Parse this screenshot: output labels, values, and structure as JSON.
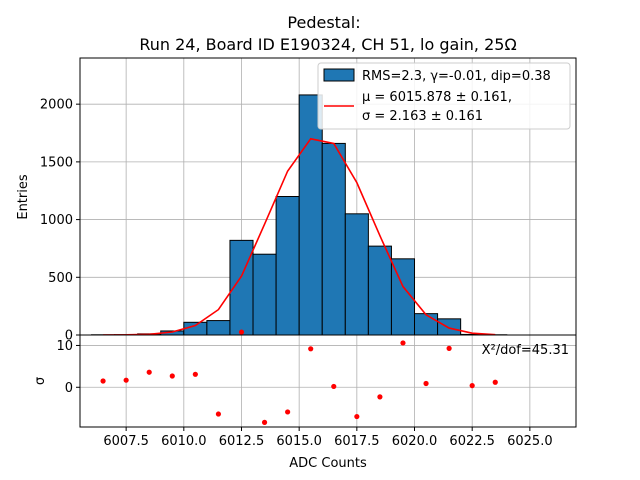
{
  "chart_data": [
    {
      "type": "bar",
      "title_line1": "Pedestal:",
      "title_line2": "Run 24, Board ID E190324, CH 51, lo gain, 25Ω",
      "xlabel": "",
      "ylabel": "Entries",
      "xlim": [
        6005.5,
        6027.0
      ],
      "ylim": [
        0,
        2400
      ],
      "grid": true,
      "yticks": [
        0,
        500,
        1000,
        1500,
        2000
      ],
      "bins": {
        "left_edges": [
          6006,
          6007,
          6008,
          6009,
          6010,
          6011,
          6012,
          6013,
          6014,
          6015,
          6016,
          6017,
          6018,
          6019,
          6020,
          6021,
          6022,
          6023
        ],
        "width": 1,
        "counts": [
          2,
          3,
          10,
          35,
          110,
          125,
          820,
          700,
          1200,
          2080,
          1660,
          1050,
          770,
          660,
          185,
          140,
          5,
          2
        ]
      },
      "fit_curve": {
        "x": [
          6006.5,
          6007.5,
          6008.5,
          6009.5,
          6010.5,
          6011.5,
          6012.5,
          6013.5,
          6014.5,
          6015.5,
          6016.5,
          6017.5,
          6018.5,
          6019.5,
          6020.5,
          6021.5,
          6022.5,
          6023.5
        ],
        "y": [
          0,
          1,
          6,
          26,
          82,
          220,
          510,
          960,
          1420,
          1700,
          1660,
          1320,
          860,
          420,
          175,
          60,
          16,
          3
        ]
      },
      "legend": {
        "position": "upper-right",
        "entries": [
          {
            "kind": "bar",
            "label": "RMS=2.3, γ=-0.01, dip=0.38"
          },
          {
            "kind": "line",
            "label_line1": "μ = 6015.878 ± 0.161,",
            "label_line2": "σ = 2.163 ± 0.161"
          }
        ]
      },
      "colors": {
        "bar": "#1f77b4",
        "edge": "#000000",
        "fit": "#ff0000"
      }
    },
    {
      "type": "scatter",
      "xlabel": "ADC Counts",
      "ylabel": "σ",
      "xlim": [
        6005.5,
        6027.0
      ],
      "ylim": [
        -9.5,
        12.5
      ],
      "grid": true,
      "xticks": [
        6007.5,
        6010.0,
        6012.5,
        6015.0,
        6017.5,
        6020.0,
        6022.5,
        6025.0
      ],
      "xtick_labels": [
        "6007.5",
        "6010.0",
        "6012.5",
        "6015.0",
        "6017.5",
        "6020.0",
        "6022.5",
        "6025.0"
      ],
      "yticks": [
        0,
        10
      ],
      "annotation": "X²/dof=45.31",
      "points": {
        "x": [
          6006.5,
          6007.5,
          6008.5,
          6009.5,
          6010.5,
          6011.5,
          6012.5,
          6013.5,
          6014.5,
          6015.5,
          6016.5,
          6017.5,
          6018.5,
          6019.5,
          6020.5,
          6021.5,
          6022.5,
          6023.5
        ],
        "y": [
          1.5,
          1.7,
          3.6,
          2.7,
          3.1,
          -6.4,
          13.2,
          -8.4,
          -5.9,
          9.2,
          0.2,
          -7.0,
          -2.3,
          10.6,
          0.9,
          9.3,
          0.4,
          1.2
        ]
      },
      "colors": {
        "point": "#ff0000"
      }
    }
  ]
}
